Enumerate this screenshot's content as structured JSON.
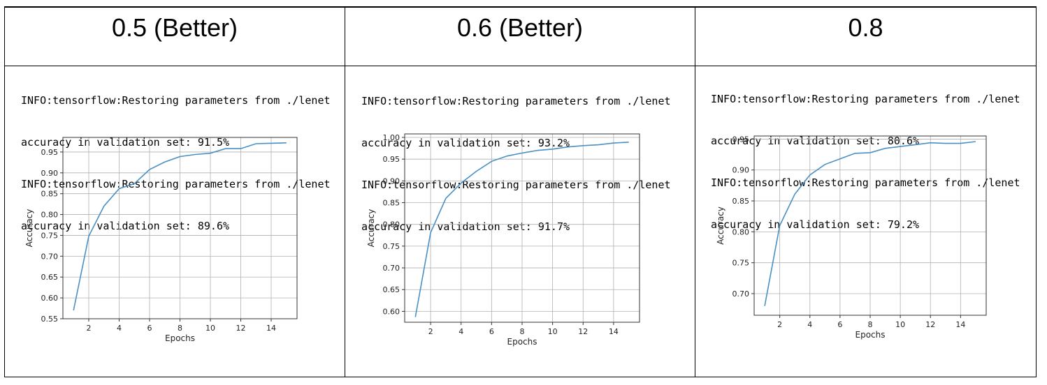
{
  "columns": [
    {
      "header": "0.5 (Better)",
      "log_lines": [
        "INFO:tensorflow:Restoring parameters from ./lenet",
        "accuracy in validation set: 91.5%",
        "INFO:tensorflow:Restoring parameters from ./lenet",
        "accuracy in validation set: 89.6%"
      ]
    },
    {
      "header": "0.6 (Better)",
      "log_lines": [
        "INFO:tensorflow:Restoring parameters from ./lenet",
        "accuracy in validation set: 93.2%",
        "INFO:tensorflow:Restoring parameters from ./lenet",
        "accuracy in validation set: 91.7%"
      ]
    },
    {
      "header": "0.8",
      "log_lines": [
        "INFO:tensorflow:Restoring parameters from ./lenet",
        "accuracy in validation set: 80.6%",
        "INFO:tensorflow:Restoring parameters from ./lenet",
        "accuracy in validation set: 79.2%"
      ]
    }
  ],
  "chart_data": [
    {
      "type": "line",
      "xlabel": "Epochs",
      "ylabel": "Accuracy",
      "xlim": [
        0.3,
        15.7
      ],
      "ylim": [
        0.55,
        0.985
      ],
      "xticks": [
        2,
        4,
        6,
        8,
        10,
        12,
        14
      ],
      "yticks": [
        0.55,
        0.6,
        0.65,
        0.7,
        0.75,
        0.8,
        0.85,
        0.9,
        0.95
      ],
      "ytick_labels": [
        "0.55",
        "0.60",
        "0.65",
        "0.70",
        "0.75",
        "0.80",
        "0.85",
        "0.90",
        "0.95"
      ],
      "grid": true,
      "line_color": "#4a90c4",
      "x": [
        1,
        2,
        3,
        4,
        5,
        6,
        7,
        8,
        9,
        10,
        11,
        12,
        13,
        14,
        15
      ],
      "y": [
        0.57,
        0.748,
        0.82,
        0.862,
        0.874,
        0.908,
        0.926,
        0.939,
        0.944,
        0.947,
        0.958,
        0.958,
        0.97,
        0.971,
        0.972
      ]
    },
    {
      "type": "line",
      "xlabel": "Epochs",
      "ylabel": "Accuracy",
      "xlim": [
        0.3,
        15.7
      ],
      "ylim": [
        0.575,
        1.008
      ],
      "xticks": [
        2,
        4,
        6,
        8,
        10,
        12,
        14
      ],
      "yticks": [
        0.6,
        0.65,
        0.7,
        0.75,
        0.8,
        0.85,
        0.9,
        0.95,
        1.0
      ],
      "ytick_labels": [
        "0.60",
        "0.65",
        "0.70",
        "0.75",
        "0.80",
        "0.85",
        "0.90",
        "0.95",
        "1.00"
      ],
      "grid": true,
      "line_color": "#4a90c4",
      "x": [
        1,
        2,
        3,
        4,
        5,
        6,
        7,
        8,
        9,
        10,
        11,
        12,
        13,
        14,
        15
      ],
      "y": [
        0.587,
        0.781,
        0.86,
        0.895,
        0.922,
        0.945,
        0.957,
        0.964,
        0.97,
        0.973,
        0.978,
        0.981,
        0.983,
        0.987,
        0.989
      ]
    },
    {
      "type": "line",
      "xlabel": "Epochs",
      "ylabel": "Accuracy",
      "xlim": [
        0.3,
        15.7
      ],
      "ylim": [
        0.665,
        0.955
      ],
      "xticks": [
        2,
        4,
        6,
        8,
        10,
        12,
        14
      ],
      "yticks": [
        0.7,
        0.75,
        0.8,
        0.85,
        0.9,
        0.95
      ],
      "ytick_labels": [
        "0.70",
        "0.75",
        "0.80",
        "0.85",
        "0.90",
        "0.95"
      ],
      "grid": true,
      "line_color": "#4a90c4",
      "x": [
        1,
        2,
        3,
        4,
        5,
        6,
        7,
        8,
        9,
        10,
        11,
        12,
        13,
        14,
        15
      ],
      "y": [
        0.68,
        0.81,
        0.861,
        0.892,
        0.909,
        0.918,
        0.927,
        0.928,
        0.935,
        0.938,
        0.941,
        0.944,
        0.943,
        0.943,
        0.946
      ]
    }
  ]
}
